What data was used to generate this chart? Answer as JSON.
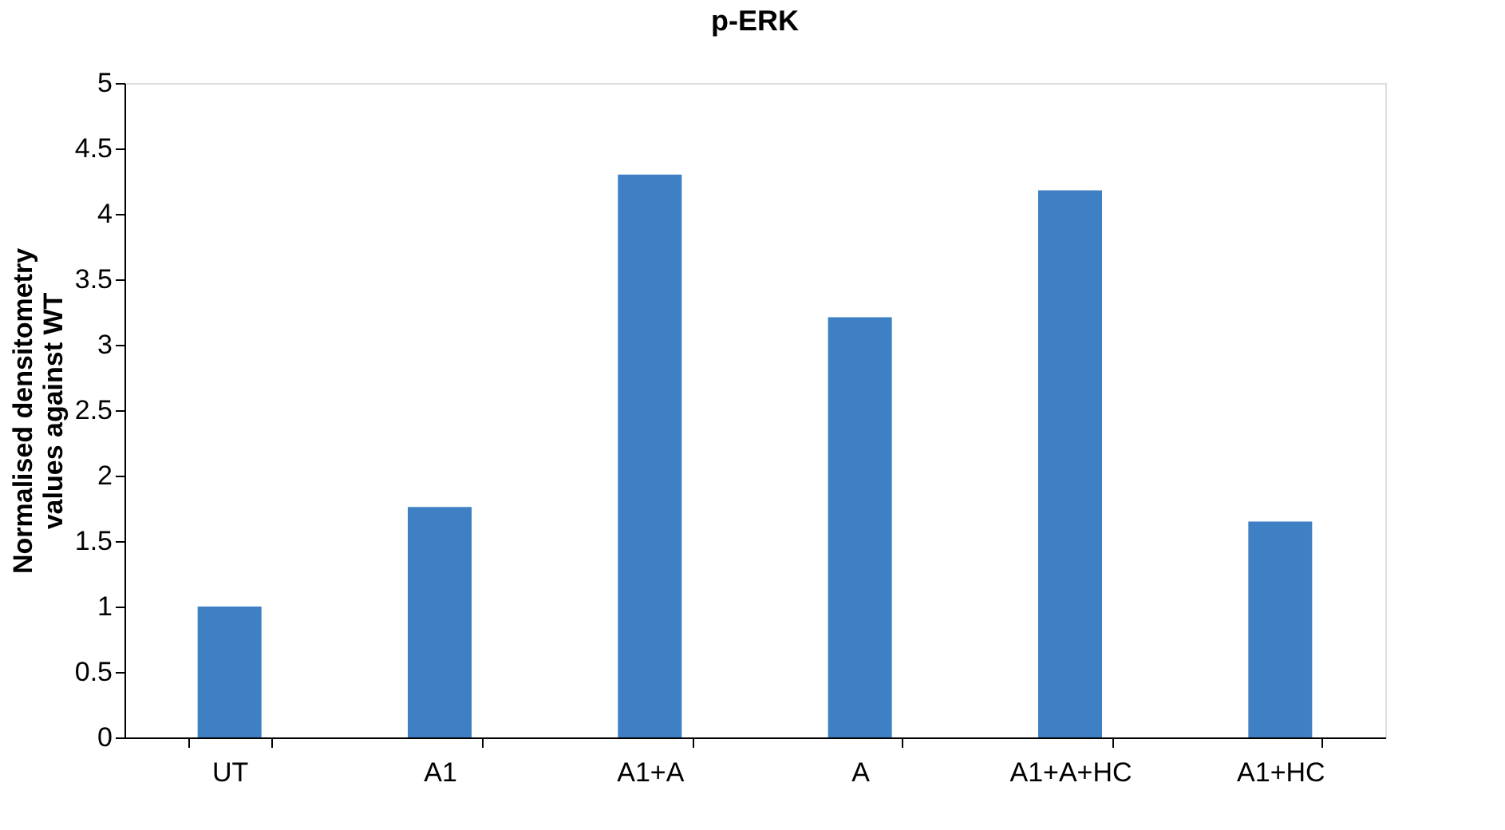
{
  "chart_data": {
    "type": "bar",
    "title": "p-ERK",
    "ylabel": "Normalised densitometry values against WT",
    "categories": [
      "UT",
      "A1",
      "A1+A",
      "A",
      "A1+A+HC",
      "A1+HC"
    ],
    "values": [
      1.0,
      1.76,
      4.3,
      3.21,
      4.18,
      1.65
    ],
    "color": "#3f80c4",
    "ylim": [
      0,
      5
    ],
    "yticks": [
      0,
      0.5,
      1,
      1.5,
      2,
      2.5,
      3,
      3.5,
      4,
      4.5,
      5
    ],
    "grid": false
  }
}
